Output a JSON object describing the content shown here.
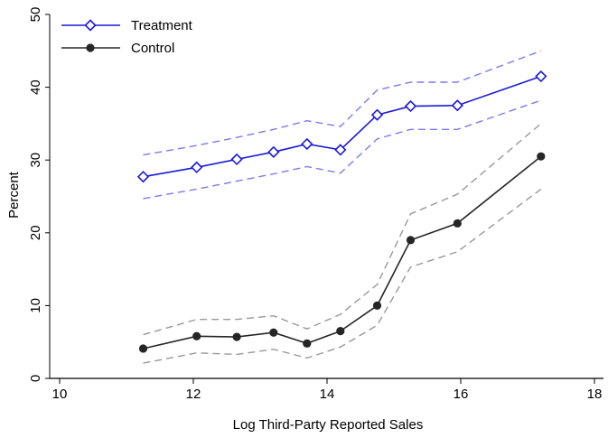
{
  "chart_data": {
    "type": "line",
    "title": "",
    "xlabel": "Log Third-Party Reported Sales",
    "ylabel": "Percent",
    "xlim": [
      10,
      18
    ],
    "ylim": [
      0,
      50
    ],
    "xticks": [
      "10",
      "12",
      "14",
      "16",
      "18"
    ],
    "yticks": [
      "0",
      "10",
      "20",
      "30",
      "40",
      "50"
    ],
    "grid": false,
    "legend_position": "top-left",
    "series": [
      {
        "name": "Treatment",
        "color": "#1a1adb",
        "marker": "hollow-diamond",
        "x": [
          11.25,
          12.05,
          12.65,
          13.2,
          13.7,
          14.2,
          14.75,
          15.25,
          15.95,
          17.2
        ],
        "y": [
          27.7,
          29.0,
          30.1,
          31.1,
          32.2,
          31.4,
          36.2,
          37.4,
          37.5,
          41.5
        ],
        "ci_upper": [
          30.7,
          32.0,
          33.1,
          34.2,
          35.4,
          34.6,
          39.6,
          40.7,
          40.7,
          45.0
        ],
        "ci_lower": [
          24.7,
          26.0,
          27.1,
          28.1,
          29.1,
          28.2,
          32.9,
          34.2,
          34.2,
          38.2
        ]
      },
      {
        "name": "Control",
        "color": "#262626",
        "marker": "filled-circle",
        "x": [
          11.25,
          12.05,
          12.65,
          13.2,
          13.7,
          14.2,
          14.75,
          15.25,
          15.95,
          17.2
        ],
        "y": [
          4.1,
          5.8,
          5.7,
          6.3,
          4.8,
          6.5,
          10.0,
          19.0,
          21.3,
          30.5
        ],
        "ci_upper": [
          6.0,
          8.1,
          8.1,
          8.6,
          6.8,
          8.8,
          12.9,
          22.6,
          25.3,
          35.0
        ],
        "ci_lower": [
          2.1,
          3.5,
          3.3,
          4.0,
          2.8,
          4.3,
          7.3,
          15.3,
          17.4,
          26.0
        ]
      }
    ]
  }
}
